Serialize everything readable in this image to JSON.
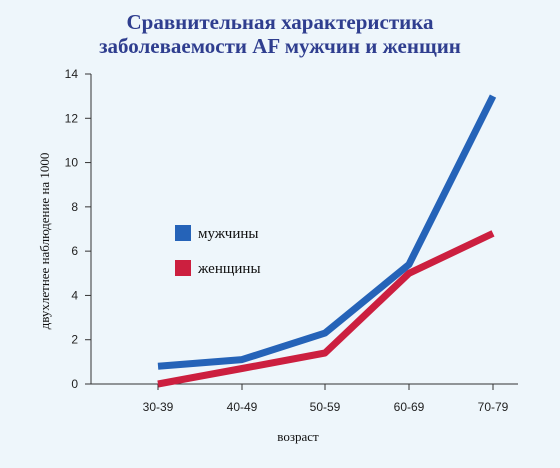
{
  "chart_data": {
    "type": "line",
    "title": [
      "Сравнительная характеристика",
      "заболеваемости AF мужчин и женщин"
    ],
    "xlabel": "возраст",
    "ylabel": "двухлетнее наблюдение на 1000",
    "categories": [
      "30-39",
      "40-49",
      "50-59",
      "60-69",
      "70-79"
    ],
    "ylim": [
      0,
      14
    ],
    "yticks": [
      0,
      2,
      4,
      6,
      8,
      10,
      12,
      14
    ],
    "grid": false,
    "legend_position": "center-left",
    "series": [
      {
        "name": "мужчины",
        "color": "#2563b8",
        "values": [
          0.8,
          1.1,
          2.3,
          5.4,
          13.0
        ]
      },
      {
        "name": "женщины",
        "color": "#cc1f3f",
        "values": [
          0.0,
          0.7,
          1.4,
          5.0,
          6.8
        ]
      }
    ]
  }
}
